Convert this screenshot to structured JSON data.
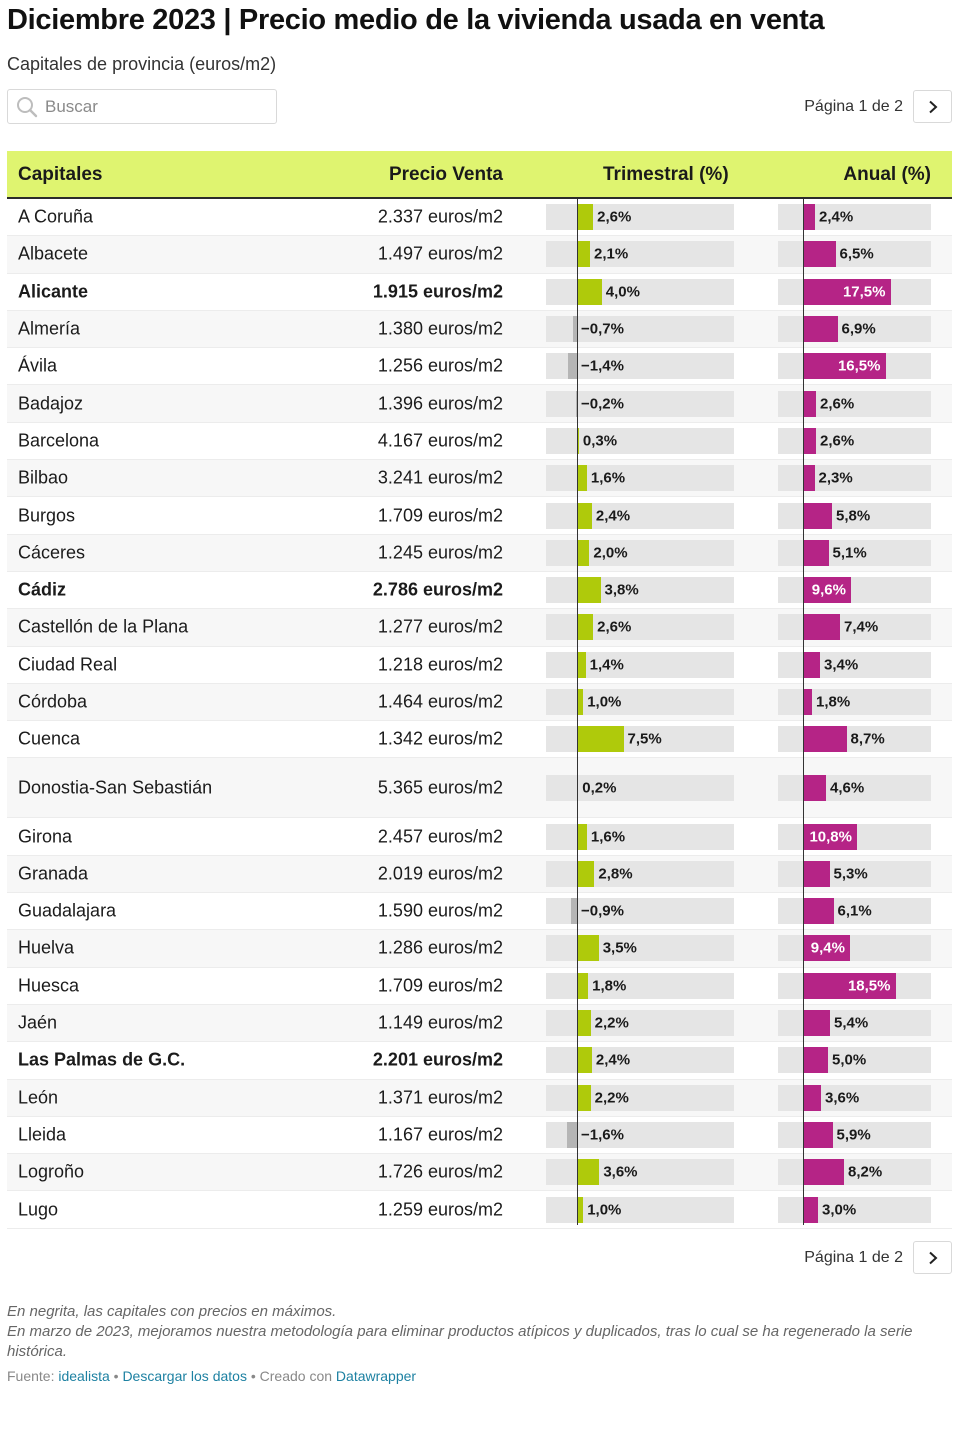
{
  "header": {
    "title": "Diciembre 2023 | Precio medio de la vivienda usada en venta",
    "subtitle": "Capitales de provincia (euros/m2)"
  },
  "search": {
    "placeholder": "Buscar"
  },
  "pagination": {
    "label": "Página 1 de 2"
  },
  "colors": {
    "header_bg": "#dff470",
    "trimestral_bar": "#afca0b",
    "negative_bar": "#b5b5b5",
    "anual_bar": "#b52486",
    "track": "#e5e5e5"
  },
  "table": {
    "columns": [
      "Capitales",
      "Precio Venta",
      "Trimestral (%)",
      "Anual (%)"
    ]
  },
  "chart_data": {
    "type": "table",
    "columns": [
      "Capitales",
      "Precio Venta",
      "Trimestral (%)",
      "Anual (%)"
    ],
    "rows": [
      {
        "name": "A Coruña",
        "price": "2.337 euros/m2",
        "trim": 2.6,
        "trim_label": "2,6%",
        "anual": 2.4,
        "anual_label": "2,4%",
        "bold": false
      },
      {
        "name": "Albacete",
        "price": "1.497 euros/m2",
        "trim": 2.1,
        "trim_label": "2,1%",
        "anual": 6.5,
        "anual_label": "6,5%",
        "bold": false
      },
      {
        "name": "Alicante",
        "price": "1.915 euros/m2",
        "trim": 4.0,
        "trim_label": "4,0%",
        "anual": 17.5,
        "anual_label": "17,5%",
        "bold": true
      },
      {
        "name": "Almería",
        "price": "1.380 euros/m2",
        "trim": -0.7,
        "trim_label": "−0,7%",
        "anual": 6.9,
        "anual_label": "6,9%",
        "bold": false
      },
      {
        "name": "Ávila",
        "price": "1.256 euros/m2",
        "trim": -1.4,
        "trim_label": "−1,4%",
        "anual": 16.5,
        "anual_label": "16,5%",
        "bold": false
      },
      {
        "name": "Badajoz",
        "price": "1.396 euros/m2",
        "trim": -0.2,
        "trim_label": "−0,2%",
        "anual": 2.6,
        "anual_label": "2,6%",
        "bold": false
      },
      {
        "name": "Barcelona",
        "price": "4.167 euros/m2",
        "trim": 0.3,
        "trim_label": "0,3%",
        "anual": 2.6,
        "anual_label": "2,6%",
        "bold": false
      },
      {
        "name": "Bilbao",
        "price": "3.241 euros/m2",
        "trim": 1.6,
        "trim_label": "1,6%",
        "anual": 2.3,
        "anual_label": "2,3%",
        "bold": false
      },
      {
        "name": "Burgos",
        "price": "1.709 euros/m2",
        "trim": 2.4,
        "trim_label": "2,4%",
        "anual": 5.8,
        "anual_label": "5,8%",
        "bold": false
      },
      {
        "name": "Cáceres",
        "price": "1.245 euros/m2",
        "trim": 2.0,
        "trim_label": "2,0%",
        "anual": 5.1,
        "anual_label": "5,1%",
        "bold": false
      },
      {
        "name": "Cádiz",
        "price": "2.786 euros/m2",
        "trim": 3.8,
        "trim_label": "3,8%",
        "anual": 9.6,
        "anual_label": "9,6%",
        "bold": true
      },
      {
        "name": "Castellón de la Plana",
        "price": "1.277 euros/m2",
        "trim": 2.6,
        "trim_label": "2,6%",
        "anual": 7.4,
        "anual_label": "7,4%",
        "bold": false
      },
      {
        "name": "Ciudad Real",
        "price": "1.218 euros/m2",
        "trim": 1.4,
        "trim_label": "1,4%",
        "anual": 3.4,
        "anual_label": "3,4%",
        "bold": false
      },
      {
        "name": "Córdoba",
        "price": "1.464 euros/m2",
        "trim": 1.0,
        "trim_label": "1,0%",
        "anual": 1.8,
        "anual_label": "1,8%",
        "bold": false
      },
      {
        "name": "Cuenca",
        "price": "1.342 euros/m2",
        "trim": 7.5,
        "trim_label": "7,5%",
        "anual": 8.7,
        "anual_label": "8,7%",
        "bold": false
      },
      {
        "name": "Donostia-San Sebastián",
        "price": "5.365 euros/m2",
        "trim": 0.2,
        "trim_label": "0,2%",
        "anual": 4.6,
        "anual_label": "4,6%",
        "bold": false
      },
      {
        "name": "Girona",
        "price": "2.457 euros/m2",
        "trim": 1.6,
        "trim_label": "1,6%",
        "anual": 10.8,
        "anual_label": "10,8%",
        "bold": false
      },
      {
        "name": "Granada",
        "price": "2.019 euros/m2",
        "trim": 2.8,
        "trim_label": "2,8%",
        "anual": 5.3,
        "anual_label": "5,3%",
        "bold": false
      },
      {
        "name": "Guadalajara",
        "price": "1.590 euros/m2",
        "trim": -0.9,
        "trim_label": "−0,9%",
        "anual": 6.1,
        "anual_label": "6,1%",
        "bold": false
      },
      {
        "name": "Huelva",
        "price": "1.286 euros/m2",
        "trim": 3.5,
        "trim_label": "3,5%",
        "anual": 9.4,
        "anual_label": "9,4%",
        "bold": false
      },
      {
        "name": "Huesca",
        "price": "1.709 euros/m2",
        "trim": 1.8,
        "trim_label": "1,8%",
        "anual": 18.5,
        "anual_label": "18,5%",
        "bold": false
      },
      {
        "name": "Jaén",
        "price": "1.149 euros/m2",
        "trim": 2.2,
        "trim_label": "2,2%",
        "anual": 5.4,
        "anual_label": "5,4%",
        "bold": false
      },
      {
        "name": "Las Palmas de G.C.",
        "price": "2.201 euros/m2",
        "trim": 2.4,
        "trim_label": "2,4%",
        "anual": 5.0,
        "anual_label": "5,0%",
        "bold": true
      },
      {
        "name": "León",
        "price": "1.371 euros/m2",
        "trim": 2.2,
        "trim_label": "2,2%",
        "anual": 3.6,
        "anual_label": "3,6%",
        "bold": false
      },
      {
        "name": "Lleida",
        "price": "1.167 euros/m2",
        "trim": -1.6,
        "trim_label": "−1,6%",
        "anual": 5.9,
        "anual_label": "5,9%",
        "bold": false
      },
      {
        "name": "Logroño",
        "price": "1.726 euros/m2",
        "trim": 3.6,
        "trim_label": "3,6%",
        "anual": 8.2,
        "anual_label": "8,2%",
        "bold": false
      },
      {
        "name": "Lugo",
        "price": "1.259 euros/m2",
        "trim": 1.0,
        "trim_label": "1,0%",
        "anual": 3.0,
        "anual_label": "3,0%",
        "bold": false
      }
    ]
  },
  "notes": {
    "line1": "En negrita, las capitales con precios en máximos.",
    "line2": "En marzo de 2023, mejoramos nuestra metodología para eliminar productos atípicos y duplicados, tras lo cual se ha regenerado la serie histórica."
  },
  "footer": {
    "source_prefix": "Fuente: ",
    "source_link": "idealista",
    "separator": " • ",
    "download_link": "Descargar los datos",
    "created_with": "Creado con ",
    "tool_link": "Datawrapper"
  }
}
